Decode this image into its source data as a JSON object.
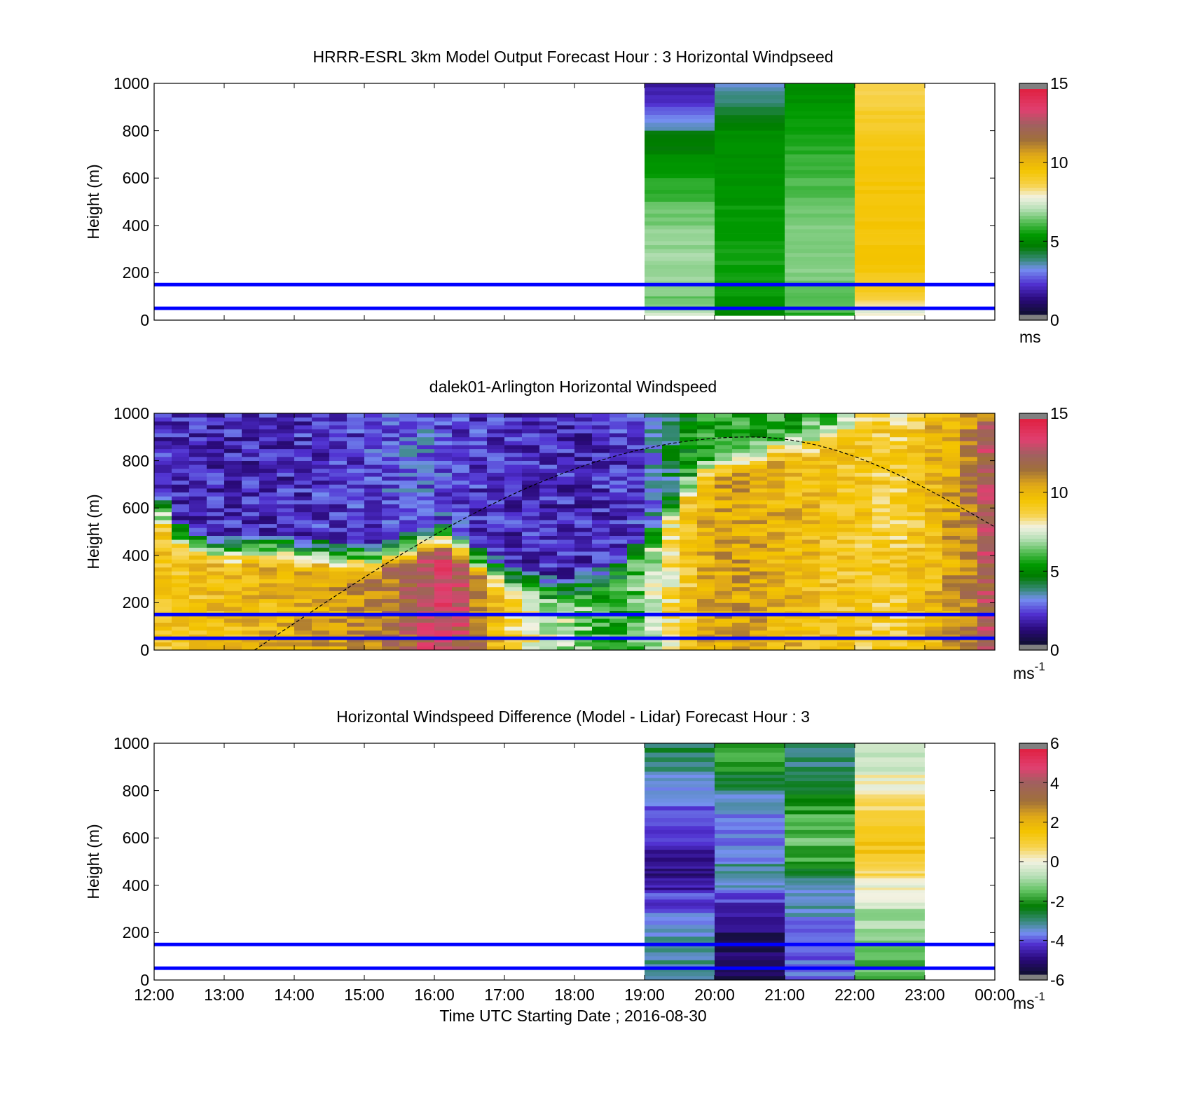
{
  "chart_data": [
    {
      "type": "heatmap",
      "title": "HRRR-ESRL 3km Model Output   Forecast Hour : 3 Horizontal Windpseed",
      "ylabel": "Height (m)",
      "xlabel": "",
      "xlim": [
        "12:00",
        "00:00"
      ],
      "ylim": [
        0,
        1000
      ],
      "yticks": [
        "0",
        "200",
        "400",
        "600",
        "800",
        "1000"
      ],
      "colorbar": {
        "min": 0,
        "max": 15,
        "ticks": [
          "0",
          "5",
          "10",
          "15"
        ],
        "unit": "ms",
        "unit_sup": ""
      },
      "grid": false,
      "data_hours": [
        "19:00",
        "20:00",
        "21:00",
        "22:00"
      ],
      "levels": [
        {
          "top": 1000,
          "values": [
            1.5,
            3.2,
            5.0,
            8.5
          ]
        },
        {
          "top": 900,
          "values": [
            2.5,
            4.2,
            5.2,
            9.0
          ]
        },
        {
          "top": 800,
          "values": [
            4.3,
            5.0,
            5.5,
            9.2
          ]
        },
        {
          "top": 700,
          "values": [
            5.0,
            5.0,
            5.8,
            9.5
          ]
        },
        {
          "top": 600,
          "values": [
            5.6,
            5.2,
            6.0,
            9.5
          ]
        },
        {
          "top": 500,
          "values": [
            6.3,
            5.3,
            6.3,
            9.5
          ]
        },
        {
          "top": 400,
          "values": [
            6.6,
            5.4,
            6.6,
            9.5
          ]
        },
        {
          "top": 300,
          "values": [
            6.8,
            5.5,
            6.6,
            9.5
          ]
        },
        {
          "top": 200,
          "values": [
            6.8,
            5.4,
            6.5,
            9.3
          ]
        },
        {
          "top": 100,
          "values": [
            6.2,
            5.2,
            6.0,
            8.8
          ]
        },
        {
          "top": 50,
          "values": [
            6.8,
            5.0,
            6.4,
            7.4
          ]
        },
        {
          "top": 30,
          "values": [
            7.4,
            4.8,
            5.6,
            7.8
          ]
        }
      ],
      "levels_bottom": 20,
      "reference_lines": [
        50,
        150
      ]
    },
    {
      "type": "heatmap",
      "title": "dalek01-Arlington  Horizontal Windspeed",
      "ylabel": "Height (m)",
      "xlabel": "",
      "xlim": [
        "12:00",
        "00:00"
      ],
      "ylim": [
        0,
        1000
      ],
      "yticks": [
        "0",
        "200",
        "400",
        "600",
        "800",
        "1000"
      ],
      "colorbar": {
        "min": 0,
        "max": 15,
        "ticks": [
          "0",
          "5",
          "10",
          "15"
        ],
        "unit": "ms",
        "unit_sup": "-1"
      },
      "grid": false,
      "profile_interval_minutes": 15,
      "profiles_end": "23:45",
      "surface_speed": [
        9.5,
        9.5,
        9.6,
        9.7,
        9.8,
        9.9,
        10.0,
        10.2,
        10.4,
        10.6,
        10.8,
        11.0,
        11.2,
        11.6,
        12.2,
        13.0,
        13.4,
        12.8,
        11.4,
        9.8,
        8.6,
        8.0,
        7.4,
        7.0,
        6.4,
        5.8,
        5.6,
        6.2,
        7.2,
        8.4,
        9.4,
        10.2,
        10.6,
        10.6,
        10.4,
        10.2,
        10.0,
        9.8,
        9.6,
        9.4,
        9.2,
        9.0,
        9.0,
        9.4,
        10.0,
        10.6,
        11.4,
        12.6
      ],
      "jet_top_m": [
        600,
        500,
        460,
        440,
        440,
        440,
        440,
        440,
        420,
        420,
        400,
        400,
        400,
        420,
        440,
        460,
        480,
        440,
        380,
        340,
        300,
        280,
        260,
        260,
        280,
        320,
        360,
        420,
        500,
        600,
        700,
        760,
        800,
        820,
        840,
        860,
        880,
        900,
        920,
        960,
        980,
        1000,
        1000,
        1000,
        1000,
        1000,
        1000,
        1000
      ],
      "aloft_speed": [
        1.8,
        1.8,
        1.8,
        1.8,
        1.8,
        1.8,
        1.8,
        1.8,
        1.9,
        2.0,
        2.0,
        2.1,
        2.2,
        2.4,
        2.6,
        2.6,
        2.4,
        2.2,
        2.0,
        1.9,
        1.8,
        1.8,
        1.8,
        1.8,
        1.8,
        1.9,
        2.0,
        2.2,
        3.0,
        4.0,
        5.0,
        5.4,
        5.4,
        5.4,
        5.4,
        5.6,
        5.6,
        5.8,
        6.0,
        6.6,
        7.2,
        7.6,
        8.0,
        8.4,
        8.8,
        9.0,
        9.4,
        9.6
      ],
      "boundary_layer_curve": {
        "start_time": "13:26",
        "peak_time": "20:30",
        "end_time": "00:00",
        "peak_m": 900,
        "end_m": 520
      },
      "reference_lines": [
        50,
        150
      ]
    },
    {
      "type": "heatmap",
      "title": "Horizontal Windspeed Difference (Model - Lidar) Forecast Hour : 3",
      "ylabel": "Height (m)",
      "xlabel": "Time UTC  Starting Date ; 2016-08-30",
      "xlim": [
        "12:00",
        "00:00"
      ],
      "ylim": [
        0,
        1000
      ],
      "xticks": [
        "12:00",
        "13:00",
        "14:00",
        "15:00",
        "16:00",
        "17:00",
        "18:00",
        "19:00",
        "20:00",
        "21:00",
        "22:00",
        "23:00",
        "00:00"
      ],
      "yticks": [
        "0",
        "200",
        "400",
        "600",
        "800",
        "1000"
      ],
      "colorbar": {
        "min": -6,
        "max": 6,
        "ticks": [
          "-6",
          "-4",
          "-2",
          "0",
          "2",
          "4",
          "6"
        ],
        "unit": "ms",
        "unit_sup": "-1"
      },
      "grid": false,
      "data_hours": [
        "19:00",
        "20:00",
        "21:00",
        "22:00"
      ],
      "levels": [
        {
          "top": 1000,
          "values": [
            -2.8,
            -2.0,
            -3.0,
            -0.8
          ]
        },
        {
          "top": 880,
          "values": [
            -3.4,
            -2.4,
            -3.2,
            0.0
          ]
        },
        {
          "top": 800,
          "values": [
            -3.9,
            -3.6,
            -2.4,
            0.4
          ]
        },
        {
          "top": 700,
          "values": [
            -4.3,
            -4.0,
            -1.8,
            1.2
          ]
        },
        {
          "top": 600,
          "values": [
            -4.6,
            -3.8,
            -1.6,
            1.6
          ]
        },
        {
          "top": 500,
          "values": [
            -5.0,
            -3.4,
            -2.2,
            1.0
          ]
        },
        {
          "top": 440,
          "values": [
            -5.2,
            -3.0,
            -3.0,
            0.4
          ]
        },
        {
          "top": 380,
          "values": [
            -4.4,
            -4.2,
            -3.4,
            -0.3
          ]
        },
        {
          "top": 300,
          "values": [
            -4.0,
            -5.0,
            -3.6,
            -0.9
          ]
        },
        {
          "top": 200,
          "values": [
            -3.6,
            -5.4,
            -4.2,
            -1.2
          ]
        },
        {
          "top": 100,
          "values": [
            -3.2,
            -5.6,
            -4.0,
            -1.6
          ]
        }
      ],
      "levels_bottom": 0,
      "reference_lines": [
        50,
        150
      ]
    }
  ]
}
